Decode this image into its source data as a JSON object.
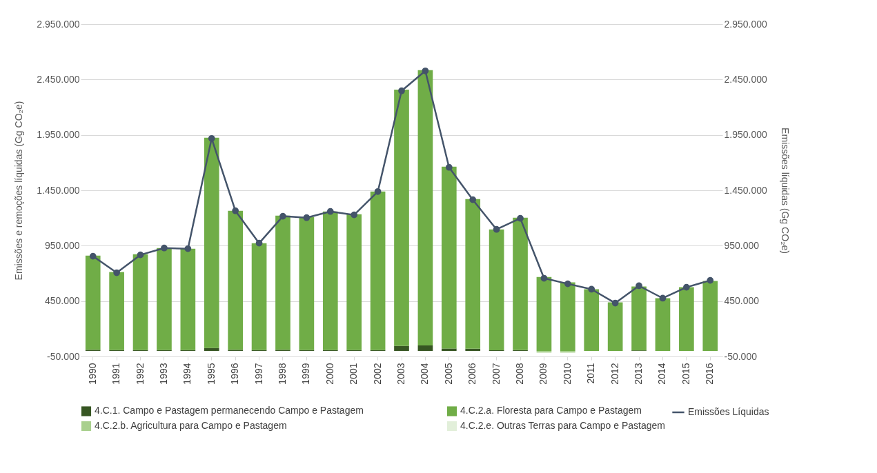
{
  "chart_data": {
    "type": "bar",
    "stacked": true,
    "categories": [
      "1990",
      "1991",
      "1992",
      "1993",
      "1994",
      "1995",
      "1996",
      "1997",
      "1998",
      "1999",
      "2000",
      "2001",
      "2002",
      "2003",
      "2004",
      "2005",
      "2006",
      "2007",
      "2008",
      "2009",
      "2010",
      "2011",
      "2012",
      "2013",
      "2014",
      "2015",
      "2016"
    ],
    "series": [
      {
        "name": "4.C.1. Campo e Pastagem permanecendo Campo e Pastagem",
        "color": "#375623",
        "values": [
          10000,
          8000,
          8000,
          8000,
          8000,
          27000,
          10000,
          8000,
          10000,
          8000,
          8000,
          8000,
          8000,
          45000,
          50000,
          22000,
          20000,
          6000,
          7000,
          0,
          0,
          0,
          0,
          5000,
          0,
          0,
          0
        ]
      },
      {
        "name": "4.C.2.a. Floresta para Campo e Pastagem",
        "color": "#70ad47",
        "values": [
          851000,
          704000,
          865000,
          921000,
          915000,
          1897000,
          1255000,
          965000,
          1212000,
          1201000,
          1251000,
          1226000,
          1431000,
          2314000,
          2484000,
          1641000,
          1351000,
          1091000,
          1196000,
          668000,
          619000,
          557000,
          438000,
          577000,
          476000,
          575000,
          631000
        ]
      },
      {
        "name": "4.C.2.b. Agricultura para Campo e Pastagem",
        "color": "#a9d08e",
        "values": [
          0,
          0,
          0,
          0,
          0,
          0,
          0,
          0,
          0,
          0,
          0,
          0,
          0,
          0,
          0,
          0,
          0,
          0,
          0,
          -15000,
          -15000,
          0,
          0,
          0,
          0,
          0,
          0
        ]
      },
      {
        "name": "4.C.2.e. Outras Terras para Campo e Pastagem",
        "color": "#e2efda",
        "values": [
          0,
          0,
          0,
          0,
          0,
          0,
          0,
          0,
          0,
          0,
          0,
          0,
          0,
          0,
          0,
          0,
          0,
          0,
          0,
          0,
          0,
          0,
          0,
          0,
          0,
          0,
          0
        ]
      },
      {
        "name": "Emissões Líquidas",
        "type": "line",
        "axis": "y2",
        "color": "#44546a",
        "marker": "circle",
        "values": [
          855000,
          706000,
          867000,
          929000,
          923000,
          1918000,
          1265000,
          973000,
          1216000,
          1203000,
          1259000,
          1228000,
          1439000,
          2348000,
          2528000,
          1657000,
          1365000,
          1097000,
          1197000,
          656000,
          606000,
          557000,
          432000,
          588000,
          476000,
          575000,
          637000
        ]
      }
    ],
    "ylabel": "Emissões e remoções líquidas (Gg CO₂e)",
    "y2label": "Emissões líquidas (Gg CO₂e)",
    "ylim": [
      -50000,
      2950000
    ],
    "yticks": [
      {
        "value": -50000,
        "label": "-50.000"
      },
      {
        "value": 450000,
        "label": "450.000"
      },
      {
        "value": 950000,
        "label": "950.000"
      },
      {
        "value": 1450000,
        "label": "1.450.000"
      },
      {
        "value": 1950000,
        "label": "1.950.000"
      },
      {
        "value": 2450000,
        "label": "2.450.000"
      },
      {
        "value": 2950000,
        "label": "2.950.000"
      }
    ],
    "y2lim": [
      -50000,
      2950000
    ],
    "y2ticks": [
      {
        "value": -50000,
        "label": "-50.000"
      },
      {
        "value": 450000,
        "label": "450.000"
      },
      {
        "value": 950000,
        "label": "950.000"
      },
      {
        "value": 1450000,
        "label": "1.450.000"
      },
      {
        "value": 1950000,
        "label": "1.950.000"
      },
      {
        "value": 2450000,
        "label": "2.450.000"
      },
      {
        "value": 2950000,
        "label": "2.950.000"
      }
    ],
    "grid": "y",
    "legend": "bottom"
  }
}
